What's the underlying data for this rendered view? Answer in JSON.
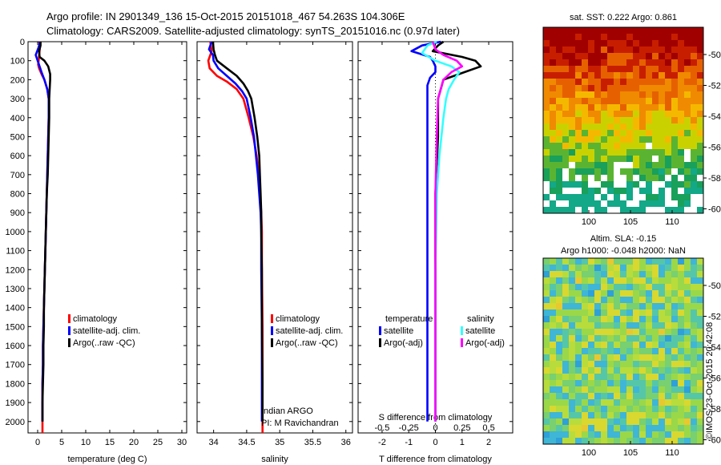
{
  "header": {
    "line1": "Argo profile: IN 2901349_136 15-Oct-2015 20151018_467 54.263S 104.306E",
    "line2": "Climatology: CARS2009. Satellite-adjusted climatology: synTS_20151016.nc (0.97d later)"
  },
  "colors": {
    "climatology": "#ff0000",
    "satellite": "#0000ff",
    "argo": "#000000",
    "sat_salinity": "#33ffff",
    "argo_salinity": "#ff00ff"
  },
  "chart_data": [
    {
      "type": "line",
      "id": "temperature",
      "xlabel": "temperature (deg C)",
      "ylabel": "",
      "xlim": [
        -2,
        31
      ],
      "ylim": [
        0,
        2060
      ],
      "xticks": [
        0,
        5,
        10,
        15,
        20,
        25,
        30
      ],
      "yticks": [
        0,
        100,
        200,
        300,
        400,
        500,
        600,
        700,
        800,
        900,
        1000,
        1100,
        1200,
        1300,
        1400,
        1500,
        1600,
        1700,
        1800,
        1900,
        2000
      ],
      "legend": [
        "climatology",
        "satellite-adj. clim.",
        "Argo(..raw -QC)"
      ],
      "series": [
        {
          "name": "climatology",
          "color": "#ff0000",
          "points": [
            [
              0.3,
              0
            ],
            [
              0.5,
              20
            ],
            [
              0.4,
              50
            ],
            [
              0.2,
              100
            ],
            [
              0.1,
              120
            ],
            [
              0.3,
              140
            ],
            [
              0.8,
              170
            ],
            [
              1.4,
              200
            ],
            [
              2.0,
              250
            ],
            [
              2.3,
              300
            ],
            [
              2.3,
              400
            ],
            [
              2.2,
              500
            ],
            [
              2.1,
              600
            ],
            [
              2.0,
              700
            ],
            [
              1.9,
              800
            ],
            [
              1.8,
              900
            ],
            [
              1.7,
              1000
            ],
            [
              1.6,
              1100
            ],
            [
              1.5,
              1200
            ],
            [
              1.4,
              1300
            ],
            [
              1.3,
              1400
            ],
            [
              1.2,
              1500
            ],
            [
              1.1,
              1600
            ],
            [
              1.1,
              1700
            ],
            [
              1.0,
              1800
            ],
            [
              1.0,
              1900
            ],
            [
              1.0,
              2000
            ],
            [
              1.0,
              2060
            ]
          ]
        },
        {
          "name": "satellite-adj. clim.",
          "color": "#0000ff",
          "points": [
            [
              0.5,
              0
            ],
            [
              0.2,
              30
            ],
            [
              -0.4,
              70
            ],
            [
              0.0,
              100
            ],
            [
              0.4,
              130
            ],
            [
              0.8,
              160
            ],
            [
              1.4,
              200
            ],
            [
              2.0,
              250
            ],
            [
              2.3,
              300
            ],
            [
              2.3,
              400
            ],
            [
              2.2,
              500
            ],
            [
              2.1,
              600
            ],
            [
              2.0,
              700
            ],
            [
              1.9,
              800
            ],
            [
              1.8,
              900
            ],
            [
              1.7,
              1000
            ],
            [
              1.6,
              1100
            ],
            [
              1.5,
              1200
            ],
            [
              1.4,
              1300
            ],
            [
              1.3,
              1400
            ],
            [
              1.2,
              1500
            ],
            [
              1.1,
              1600
            ],
            [
              1.1,
              1700
            ],
            [
              1.0,
              1800
            ],
            [
              1.0,
              1900
            ],
            [
              1.0,
              2000
            ]
          ]
        },
        {
          "name": "Argo(..raw -QC)",
          "color": "#000000",
          "points": [
            [
              0.6,
              0
            ],
            [
              0.6,
              20
            ],
            [
              0.3,
              50
            ],
            [
              0.4,
              80
            ],
            [
              1.4,
              100
            ],
            [
              2.2,
              130
            ],
            [
              2.6,
              170
            ],
            [
              2.6,
              200
            ],
            [
              2.5,
              250
            ],
            [
              2.4,
              300
            ],
            [
              2.4,
              400
            ],
            [
              2.3,
              500
            ],
            [
              2.2,
              600
            ],
            [
              2.1,
              700
            ],
            [
              1.9,
              800
            ],
            [
              1.8,
              900
            ],
            [
              1.7,
              1000
            ],
            [
              1.6,
              1100
            ],
            [
              1.5,
              1200
            ],
            [
              1.4,
              1300
            ],
            [
              1.3,
              1400
            ],
            [
              1.3,
              1500
            ],
            [
              1.2,
              1600
            ],
            [
              1.2,
              1700
            ],
            [
              1.1,
              1800
            ],
            [
              1.0,
              1900
            ],
            [
              1.0,
              2000
            ]
          ]
        }
      ]
    },
    {
      "type": "line",
      "id": "salinity",
      "xlabel": "salinity",
      "xlim": [
        33.75,
        36.1
      ],
      "ylim": [
        0,
        2060
      ],
      "xticks": [
        34,
        34.5,
        35,
        35.5,
        36
      ],
      "legend": [
        "climatology",
        "satellite-adj. clim.",
        "Argo(..raw -QC)"
      ],
      "annotation": [
        "Indian ARGO",
        "PI: M Ravichandran"
      ],
      "series": [
        {
          "name": "climatology",
          "color": "#ff0000",
          "points": [
            [
              33.95,
              0
            ],
            [
              33.97,
              50
            ],
            [
              33.92,
              100
            ],
            [
              33.94,
              140
            ],
            [
              34.05,
              180
            ],
            [
              34.2,
              210
            ],
            [
              34.35,
              250
            ],
            [
              34.45,
              300
            ],
            [
              34.53,
              400
            ],
            [
              34.6,
              500
            ],
            [
              34.65,
              600
            ],
            [
              34.68,
              700
            ],
            [
              34.7,
              800
            ],
            [
              34.72,
              900
            ],
            [
              34.73,
              1000
            ],
            [
              34.73,
              1200
            ],
            [
              34.74,
              1500
            ],
            [
              34.74,
              1800
            ],
            [
              34.74,
              2060
            ]
          ]
        },
        {
          "name": "satellite-adj. clim.",
          "color": "#0000ff",
          "points": [
            [
              33.97,
              0
            ],
            [
              33.93,
              40
            ],
            [
              33.99,
              70
            ],
            [
              34.0,
              100
            ],
            [
              34.07,
              140
            ],
            [
              34.2,
              180
            ],
            [
              34.33,
              220
            ],
            [
              34.43,
              260
            ],
            [
              34.5,
              300
            ],
            [
              34.56,
              400
            ],
            [
              34.61,
              500
            ],
            [
              34.64,
              600
            ],
            [
              34.67,
              700
            ],
            [
              34.69,
              800
            ],
            [
              34.71,
              900
            ],
            [
              34.72,
              1000
            ],
            [
              34.72,
              1200
            ],
            [
              34.73,
              1500
            ],
            [
              34.73,
              1800
            ],
            [
              34.73,
              2000
            ]
          ]
        },
        {
          "name": "Argo(..raw -QC)",
          "color": "#000000",
          "points": [
            [
              33.99,
              0
            ],
            [
              34.0,
              40
            ],
            [
              34.02,
              70
            ],
            [
              34.05,
              100
            ],
            [
              34.2,
              140
            ],
            [
              34.35,
              180
            ],
            [
              34.45,
              220
            ],
            [
              34.52,
              260
            ],
            [
              34.57,
              300
            ],
            [
              34.62,
              400
            ],
            [
              34.66,
              500
            ],
            [
              34.69,
              600
            ],
            [
              34.7,
              700
            ],
            [
              34.71,
              800
            ],
            [
              34.72,
              900
            ],
            [
              34.72,
              1000
            ],
            [
              34.73,
              1200
            ],
            [
              34.73,
              1500
            ],
            [
              34.74,
              1800
            ],
            [
              34.74,
              2000
            ]
          ]
        }
      ]
    },
    {
      "type": "line",
      "id": "difference",
      "xlabel": "T difference from climatology",
      "top_label": "S difference from climatology",
      "xlim": [
        -2.9,
        2.9
      ],
      "ylim": [
        0,
        2060
      ],
      "xticks": [
        -2,
        -1,
        0,
        1,
        2
      ],
      "s_ticks": [
        "-0.5",
        "-0.25",
        "0",
        "0.25",
        "0.5"
      ],
      "legend_titles": [
        "temperature",
        "salinity"
      ],
      "legend": [
        "satellite",
        "Argo(-adj)",
        "satellite",
        "Argo(-adj)"
      ],
      "series": [
        {
          "name": "satellite",
          "group": "temperature",
          "color": "#0000ff",
          "points": [
            [
              0.2,
              0
            ],
            [
              -0.5,
              20
            ],
            [
              -0.9,
              50
            ],
            [
              -0.2,
              80
            ],
            [
              -0.1,
              100
            ],
            [
              0.0,
              130
            ],
            [
              0.0,
              160
            ],
            [
              -0.2,
              190
            ],
            [
              -0.3,
              230
            ],
            [
              -0.3,
              300
            ],
            [
              -0.3,
              500
            ],
            [
              -0.3,
              800
            ],
            [
              -0.3,
              1200
            ],
            [
              -0.3,
              1600
            ],
            [
              -0.3,
              2000
            ]
          ]
        },
        {
          "name": "Argo(-adj)",
          "group": "temperature",
          "color": "#000000",
          "points": [
            [
              0.3,
              0
            ],
            [
              0.1,
              20
            ],
            [
              -0.1,
              50
            ],
            [
              1.0,
              80
            ],
            [
              1.5,
              100
            ],
            [
              1.7,
              130
            ],
            [
              1.1,
              160
            ],
            [
              0.3,
              200
            ],
            [
              0.2,
              250
            ],
            [
              0.1,
              300
            ],
            [
              0.1,
              500
            ],
            [
              0.0,
              800
            ],
            [
              0.0,
              1200
            ],
            [
              0.0,
              1600
            ],
            [
              0.0,
              2000
            ]
          ]
        },
        {
          "name": "satellite",
          "group": "salinity",
          "color": "#33ffff",
          "points": [
            [
              0.05,
              0
            ],
            [
              -0.3,
              20
            ],
            [
              -0.5,
              60
            ],
            [
              0.0,
              100
            ],
            [
              0.6,
              130
            ],
            [
              0.9,
              160
            ],
            [
              0.7,
              200
            ],
            [
              0.5,
              250
            ],
            [
              0.4,
              300
            ],
            [
              0.3,
              400
            ],
            [
              0.15,
              600
            ],
            [
              0.05,
              800
            ],
            [
              0.0,
              1200
            ],
            [
              0.0,
              1600
            ],
            [
              0.0,
              2000
            ]
          ]
        },
        {
          "name": "Argo(-adj)",
          "group": "salinity",
          "color": "#ff00ff",
          "points": [
            [
              -0.1,
              0
            ],
            [
              0.0,
              40
            ],
            [
              0.3,
              70
            ],
            [
              0.8,
              100
            ],
            [
              1.0,
              130
            ],
            [
              0.6,
              160
            ],
            [
              0.3,
              200
            ],
            [
              0.2,
              250
            ],
            [
              0.1,
              300
            ],
            [
              0.05,
              500
            ],
            [
              0.0,
              800
            ],
            [
              0.0,
              1200
            ],
            [
              0.0,
              1600
            ],
            [
              0.0,
              2000
            ]
          ]
        }
      ]
    },
    {
      "type": "heatmap",
      "id": "sst_map",
      "title": "sat. SST: 0.222 Argo: 0.861",
      "xticks": [
        "100",
        "105",
        "110"
      ],
      "yticks": [
        "-50",
        "-52",
        "-54",
        "-56",
        "-58",
        "-60"
      ]
    },
    {
      "type": "heatmap",
      "id": "sla_map",
      "title_line1": "Altim. SLA: -0.15",
      "title_line2": "Argo h1000: -0.048 h2000: NaN",
      "xticks": [
        "100",
        "105",
        "110"
      ],
      "yticks": [
        "-50",
        "-52",
        "-54",
        "-56",
        "-58",
        "-60"
      ]
    }
  ],
  "credit": "©IMOS 23-Oct-2015 20:42:08"
}
